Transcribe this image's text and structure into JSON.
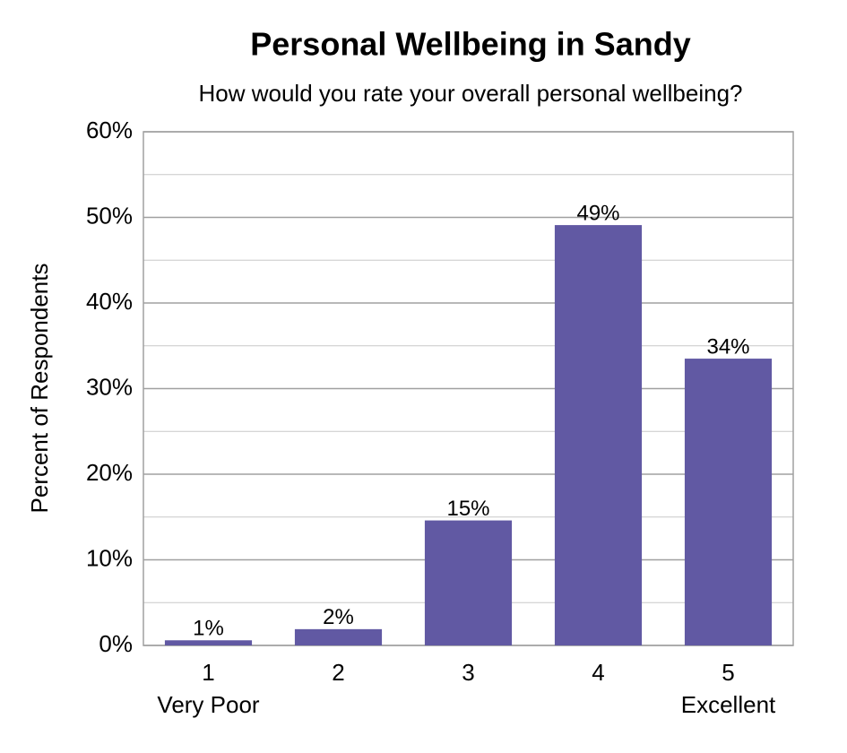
{
  "chart_data": {
    "type": "bar",
    "title": "Personal Wellbeing in Sandy",
    "subtitle": "How would you rate your overall personal wellbeing?",
    "y_label": "Percent of Respondents",
    "categories": [
      "1",
      "2",
      "3",
      "4",
      "5"
    ],
    "x_sublabels": [
      "Very Poor",
      null,
      null,
      null,
      "Excellent"
    ],
    "values": [
      0.6,
      1.9,
      14.6,
      49.1,
      33.5
    ],
    "value_labels": [
      "1%",
      "2%",
      "15%",
      "49%",
      "34%"
    ],
    "color": "#6159a3",
    "ylim": [
      0,
      60
    ],
    "yticks": [
      {
        "value": 0,
        "label": "0%"
      },
      {
        "value": 10,
        "label": "10%"
      },
      {
        "value": 20,
        "label": "20%"
      },
      {
        "value": 30,
        "label": "30%"
      },
      {
        "value": 40,
        "label": "40%"
      },
      {
        "value": 50,
        "label": "50%"
      },
      {
        "value": 60,
        "label": "60%"
      }
    ],
    "minor_yticks": [
      5,
      15,
      25,
      35,
      45,
      55
    ],
    "grid": true
  }
}
